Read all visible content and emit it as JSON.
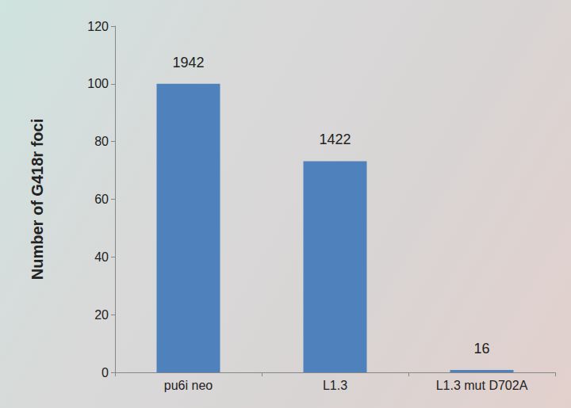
{
  "chart_data": {
    "type": "bar",
    "y_label": "Number of G418r foci",
    "categories": [
      "pu6i neo",
      "L1.3",
      "L1.3 mut D702A"
    ],
    "values": [
      100,
      73.2,
      0.8
    ],
    "counts": [
      1942,
      1422,
      16
    ],
    "color": "#4f81bd",
    "ylim": [
      0,
      120
    ],
    "yticks": [
      0,
      20,
      40,
      60,
      80,
      100,
      120
    ],
    "grid": false
  }
}
